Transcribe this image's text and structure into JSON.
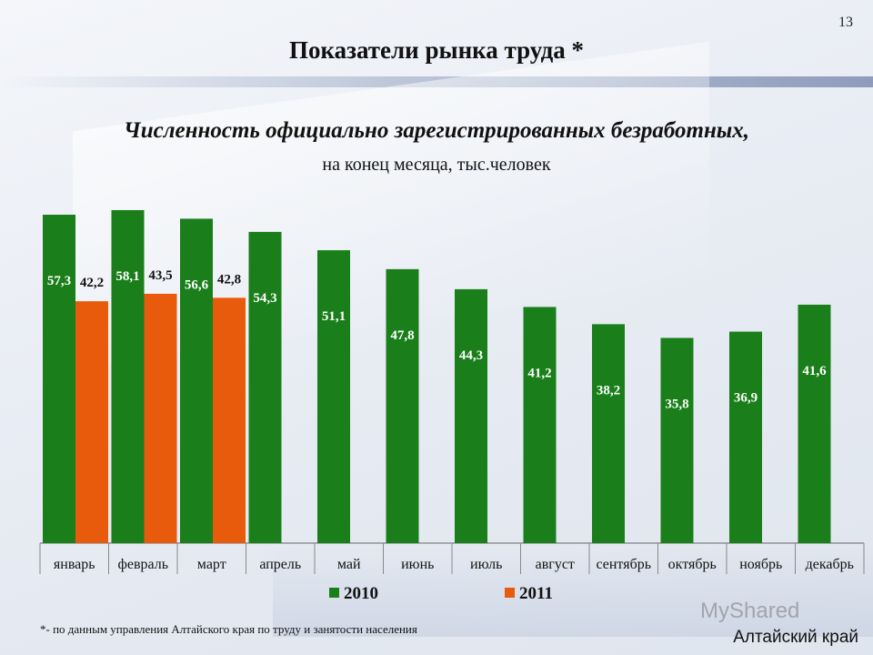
{
  "slide": {
    "number": "13",
    "title": "Показатели рынка труда *",
    "footnote": "*- по данным управления Алтайского края по труду и занятости населения",
    "region": "Алтайский край",
    "watermark": "MyShared"
  },
  "chart_data": {
    "type": "bar",
    "title": "Численность официально зарегистрированных безработных,",
    "subtitle": "на конец месяца, тыс.человек",
    "categories": [
      "январь",
      "февраль",
      "март",
      "апрель",
      "май",
      "июнь",
      "июль",
      "август",
      "сентябрь",
      "октябрь",
      "ноябрь",
      "декабрь"
    ],
    "series": [
      {
        "name": "2010",
        "color": "#1a7f1a",
        "values": [
          57.3,
          58.1,
          56.6,
          54.3,
          51.1,
          47.8,
          44.3,
          41.2,
          38.2,
          35.8,
          36.9,
          41.6
        ],
        "labels": [
          "57,3",
          "58,1",
          "56,6",
          "54,3",
          "51,1",
          "47,8",
          "44,3",
          "41,2",
          "38,2",
          "35,8",
          "36,9",
          "41,6"
        ]
      },
      {
        "name": "2011",
        "color": "#e85a0c",
        "values": [
          42.2,
          43.5,
          42.8,
          null,
          null,
          null,
          null,
          null,
          null,
          null,
          null,
          null
        ],
        "labels": [
          "42,2",
          "43,5",
          "42,8",
          "",
          "",
          "",
          "",
          "",
          "",
          "",
          "",
          ""
        ]
      }
    ],
    "legend_position": "bottom",
    "grid": false
  }
}
